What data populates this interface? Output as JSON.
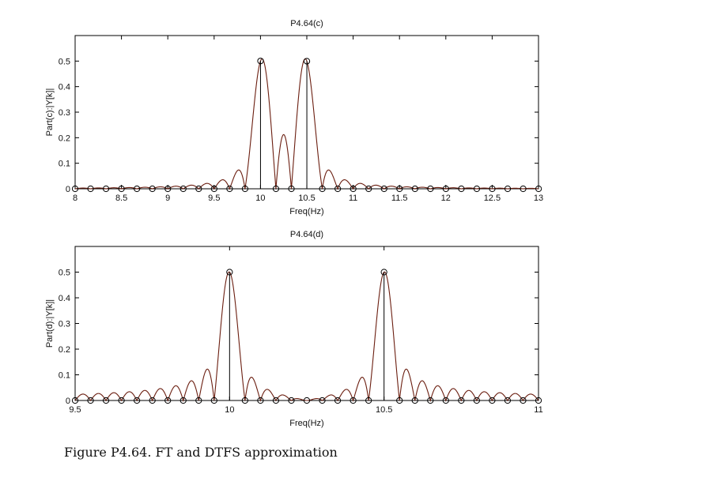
{
  "caption": "Figure P4.64. FT and DTFS approximation",
  "colors": {
    "curve": "#6b1e10",
    "frame": "#000000",
    "text": "#111111"
  },
  "chart_data": [
    {
      "type": "line",
      "title": "P4.64(c)",
      "xlabel": "Freq(Hz)",
      "ylabel": "Part(c):|Y[k]|",
      "xlim": [
        8,
        13
      ],
      "ylim": [
        0,
        0.6
      ],
      "xticks": [
        8,
        8.5,
        9,
        9.5,
        10,
        10.5,
        11,
        11.5,
        12,
        12.5,
        13
      ],
      "xtick_labels": [
        "8",
        "8.5",
        "9",
        "9.5",
        "10",
        "10.5",
        "11",
        "11.5",
        "12",
        "12.5",
        "13"
      ],
      "yticks": [
        0,
        0.1,
        0.2,
        0.3,
        0.4,
        0.5
      ],
      "ytick_labels": [
        "0",
        "0.1",
        "0.2",
        "0.3",
        "0.4",
        "0.5"
      ],
      "grid": false,
      "series": [
        {
          "kind": "line",
          "description": "FT magnitude",
          "peaks": [
            10,
            10.5
          ],
          "peak_value": 0.5,
          "lobe_width_hz": 0.1667
        },
        {
          "kind": "stem",
          "description": "DTFS samples",
          "x_start": 8,
          "x_end": 13,
          "step": 0.1667,
          "peak_value": 0.5
        }
      ]
    },
    {
      "type": "line",
      "title": "P4.64(d)",
      "xlabel": "Freq(Hz)",
      "ylabel": "Part(d):|Y[k]|",
      "xlim": [
        9.5,
        11
      ],
      "ylim": [
        0,
        0.6
      ],
      "xticks": [
        9.5,
        10,
        10.5,
        11
      ],
      "xtick_labels": [
        "9.5",
        "10",
        "10.5",
        "11"
      ],
      "yticks": [
        0,
        0.1,
        0.2,
        0.3,
        0.4,
        0.5
      ],
      "ytick_labels": [
        "0",
        "0.1",
        "0.2",
        "0.3",
        "0.4",
        "0.5"
      ],
      "grid": false,
      "series": [
        {
          "kind": "line",
          "description": "FT magnitude",
          "peaks": [
            10,
            10.5
          ],
          "peak_value": 0.5,
          "lobe_width_hz": 0.05
        },
        {
          "kind": "stem",
          "description": "DTFS samples",
          "x_start": 9.5,
          "x_end": 11,
          "step": 0.05,
          "peak_value": 0.5
        }
      ]
    }
  ]
}
